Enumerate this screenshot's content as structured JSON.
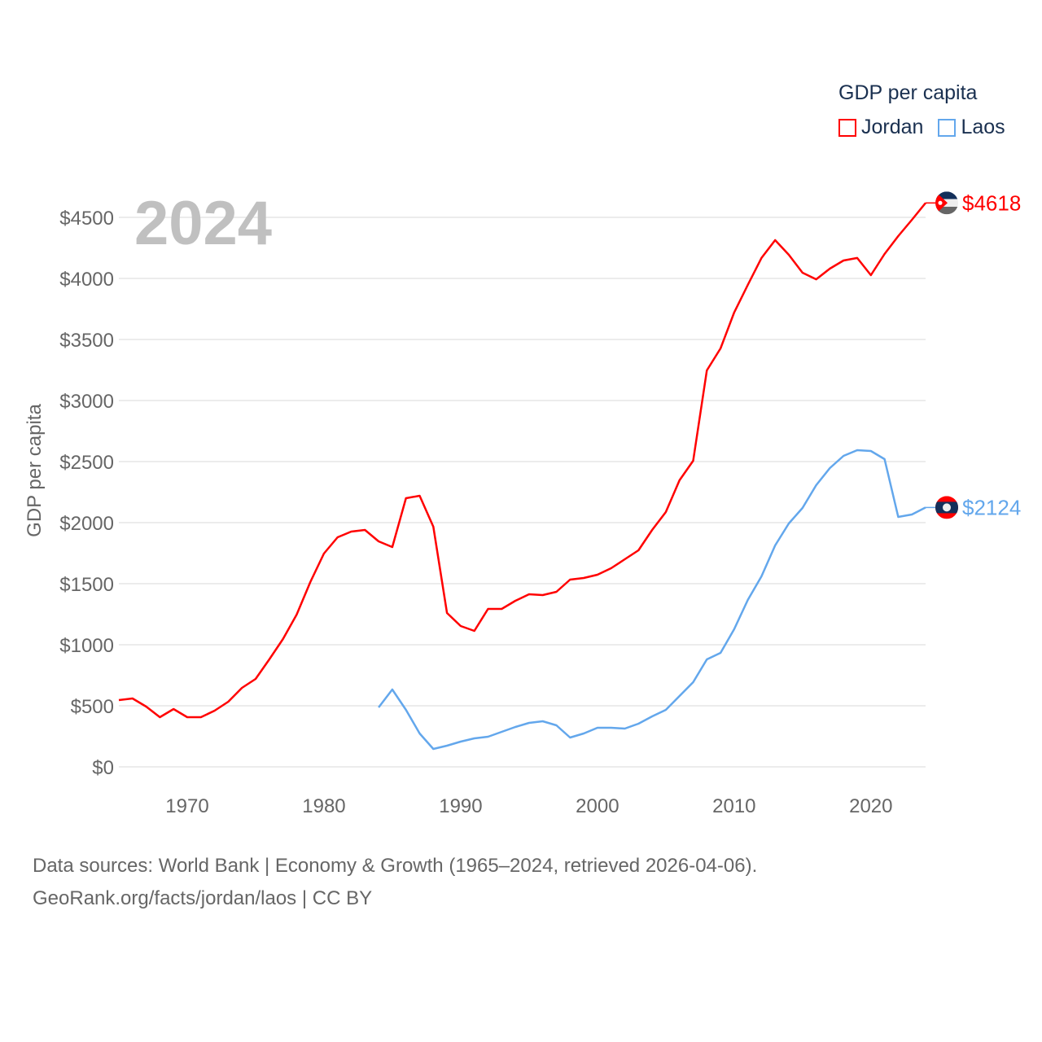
{
  "chart_data": {
    "type": "line",
    "title": "GDP per capita",
    "year_label": "2024",
    "ylabel": "GDP per capita",
    "xlabel": "",
    "xlim": [
      1965,
      2024
    ],
    "ylim": [
      0,
      4500
    ],
    "yticks": [
      0,
      500,
      1000,
      1500,
      2000,
      2500,
      3000,
      3500,
      4000,
      4500
    ],
    "ytick_labels": [
      "$0",
      "$500",
      "$1000",
      "$1500",
      "$2000",
      "$2500",
      "$3000",
      "$3500",
      "$4000",
      "$4500"
    ],
    "xticks": [
      1970,
      1980,
      1990,
      2000,
      2010,
      2020
    ],
    "xtick_labels": [
      "1970",
      "1980",
      "1990",
      "2000",
      "2010",
      "2020"
    ],
    "grid": true,
    "legend_position": "top-right",
    "series": [
      {
        "name": "Jordan",
        "color": "#ff0000",
        "end_label": "$4618",
        "start_year": 1965,
        "values": [
          547,
          560,
          493,
          407,
          473,
          407,
          407,
          460,
          533,
          647,
          720,
          880,
          1047,
          1247,
          1513,
          1747,
          1880,
          1927,
          1940,
          1847,
          1800,
          2200,
          2220,
          1967,
          1260,
          1153,
          1113,
          1293,
          1293,
          1360,
          1413,
          1407,
          1433,
          1533,
          1547,
          1573,
          1627,
          1700,
          1773,
          1940,
          2087,
          2347,
          2507,
          3247,
          3427,
          3720,
          3947,
          4167,
          4313,
          4193,
          4047,
          3993,
          4080,
          4147,
          4167,
          4027,
          4200,
          4347,
          4480,
          4618
        ]
      },
      {
        "name": "Laos",
        "color": "#63a7ec",
        "end_label": "$2124",
        "start_year": 1984,
        "values": [
          487,
          633,
          467,
          273,
          147,
          173,
          207,
          233,
          247,
          287,
          327,
          360,
          373,
          340,
          240,
          273,
          320,
          320,
          313,
          353,
          413,
          467,
          580,
          693,
          880,
          933,
          1127,
          1367,
          1560,
          1813,
          1993,
          2120,
          2307,
          2447,
          2547,
          2593,
          2587,
          2520,
          2047,
          2067,
          2124
        ]
      }
    ]
  },
  "legend": {
    "title": "GDP per capita",
    "items": [
      "Jordan",
      "Laos"
    ]
  },
  "footer": {
    "line1": "Data sources: World Bank | Economy & Growth (1965–2024, retrieved 2026-04-06).",
    "line2": "GeoRank.org/facts/jordan/laos | CC BY"
  }
}
